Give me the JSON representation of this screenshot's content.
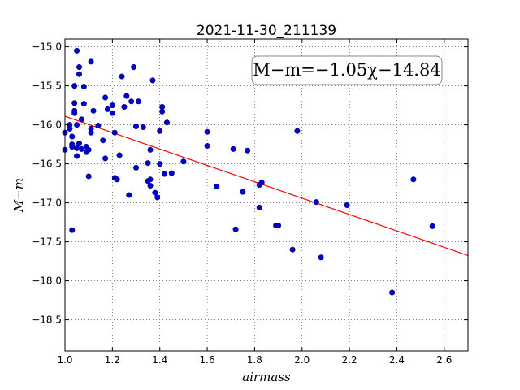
{
  "chart_data": {
    "type": "scatter",
    "title": "2021-11-30_211139",
    "xlabel": "airmass",
    "ylabel": "M−m",
    "xlim": [
      1.0,
      2.7
    ],
    "ylim": [
      -18.9,
      -14.9
    ],
    "y_inverted": true,
    "grid": true,
    "x_ticks": [
      1.0,
      1.2,
      1.4,
      1.6,
      1.8,
      2.0,
      2.2,
      2.4,
      2.6
    ],
    "x_tick_labels": [
      "1.0",
      "1.2",
      "1.4",
      "1.6",
      "1.8",
      "2.0",
      "2.2",
      "2.4",
      "2.6"
    ],
    "y_ticks": [
      -15.0,
      -15.5,
      -16.0,
      -16.5,
      -17.0,
      -17.5,
      -18.0,
      -18.5
    ],
    "y_tick_labels": [
      "−15.0",
      "−15.5",
      "−16.0",
      "−16.5",
      "−17.0",
      "−17.5",
      "−18.0",
      "−18.5"
    ],
    "annotation": "M−m=−1.05χ−14.84",
    "fit": {
      "slope": -1.05,
      "intercept": -14.84,
      "color": "#ff0000"
    },
    "marker_color": "#0000cd",
    "points": [
      [
        1.0,
        -16.1
      ],
      [
        1.0,
        -16.32
      ],
      [
        1.02,
        -16.05
      ],
      [
        1.02,
        -16.0
      ],
      [
        1.03,
        -16.25
      ],
      [
        1.03,
        -16.28
      ],
      [
        1.03,
        -16.15
      ],
      [
        1.03,
        -17.35
      ],
      [
        1.04,
        -15.5
      ],
      [
        1.04,
        -15.72
      ],
      [
        1.04,
        -15.82
      ],
      [
        1.04,
        -15.85
      ],
      [
        1.05,
        -15.05
      ],
      [
        1.05,
        -16.0
      ],
      [
        1.05,
        -16.4
      ],
      [
        1.05,
        -16.3
      ],
      [
        1.06,
        -15.26
      ],
      [
        1.06,
        -15.35
      ],
      [
        1.06,
        -16.24
      ],
      [
        1.07,
        -15.93
      ],
      [
        1.07,
        -16.31
      ],
      [
        1.08,
        -15.51
      ],
      [
        1.08,
        -15.73
      ],
      [
        1.09,
        -16.35
      ],
      [
        1.09,
        -16.28
      ],
      [
        1.1,
        -16.66
      ],
      [
        1.1,
        -16.32
      ],
      [
        1.11,
        -16.1
      ],
      [
        1.11,
        -16.05
      ],
      [
        1.11,
        -15.19
      ],
      [
        1.12,
        -15.82
      ],
      [
        1.14,
        -16.01
      ],
      [
        1.16,
        -16.2
      ],
      [
        1.17,
        -15.65
      ],
      [
        1.17,
        -16.43
      ],
      [
        1.18,
        -15.8
      ],
      [
        1.2,
        -15.75
      ],
      [
        1.2,
        -15.85
      ],
      [
        1.21,
        -16.1
      ],
      [
        1.21,
        -16.68
      ],
      [
        1.22,
        -16.7
      ],
      [
        1.23,
        -16.39
      ],
      [
        1.24,
        -15.38
      ],
      [
        1.25,
        -15.77
      ],
      [
        1.26,
        -15.63
      ],
      [
        1.27,
        -16.9
      ],
      [
        1.28,
        -15.7
      ],
      [
        1.29,
        -15.26
      ],
      [
        1.3,
        -16.02
      ],
      [
        1.3,
        -16.55
      ],
      [
        1.31,
        -15.7
      ],
      [
        1.33,
        -16.03
      ],
      [
        1.35,
        -16.49
      ],
      [
        1.35,
        -16.72
      ],
      [
        1.36,
        -16.7
      ],
      [
        1.36,
        -16.78
      ],
      [
        1.36,
        -16.32
      ],
      [
        1.37,
        -15.43
      ],
      [
        1.38,
        -16.87
      ],
      [
        1.39,
        -16.93
      ],
      [
        1.4,
        -16.08
      ],
      [
        1.4,
        -16.5
      ],
      [
        1.41,
        -15.77
      ],
      [
        1.41,
        -15.83
      ],
      [
        1.42,
        -16.63
      ],
      [
        1.43,
        -15.97
      ],
      [
        1.45,
        -16.62
      ],
      [
        1.5,
        -16.47
      ],
      [
        1.6,
        -16.09
      ],
      [
        1.6,
        -16.27
      ],
      [
        1.64,
        -16.79
      ],
      [
        1.71,
        -16.31
      ],
      [
        1.72,
        -17.34
      ],
      [
        1.75,
        -16.86
      ],
      [
        1.77,
        -16.33
      ],
      [
        1.82,
        -16.77
      ],
      [
        1.82,
        -17.06
      ],
      [
        1.83,
        -16.74
      ],
      [
        1.89,
        -17.29
      ],
      [
        1.9,
        -17.29
      ],
      [
        1.96,
        -17.6
      ],
      [
        1.98,
        -16.08
      ],
      [
        2.06,
        -16.99
      ],
      [
        2.08,
        -17.7
      ],
      [
        2.19,
        -17.03
      ],
      [
        2.38,
        -18.15
      ],
      [
        2.47,
        -16.7
      ],
      [
        2.55,
        -17.3
      ]
    ]
  }
}
